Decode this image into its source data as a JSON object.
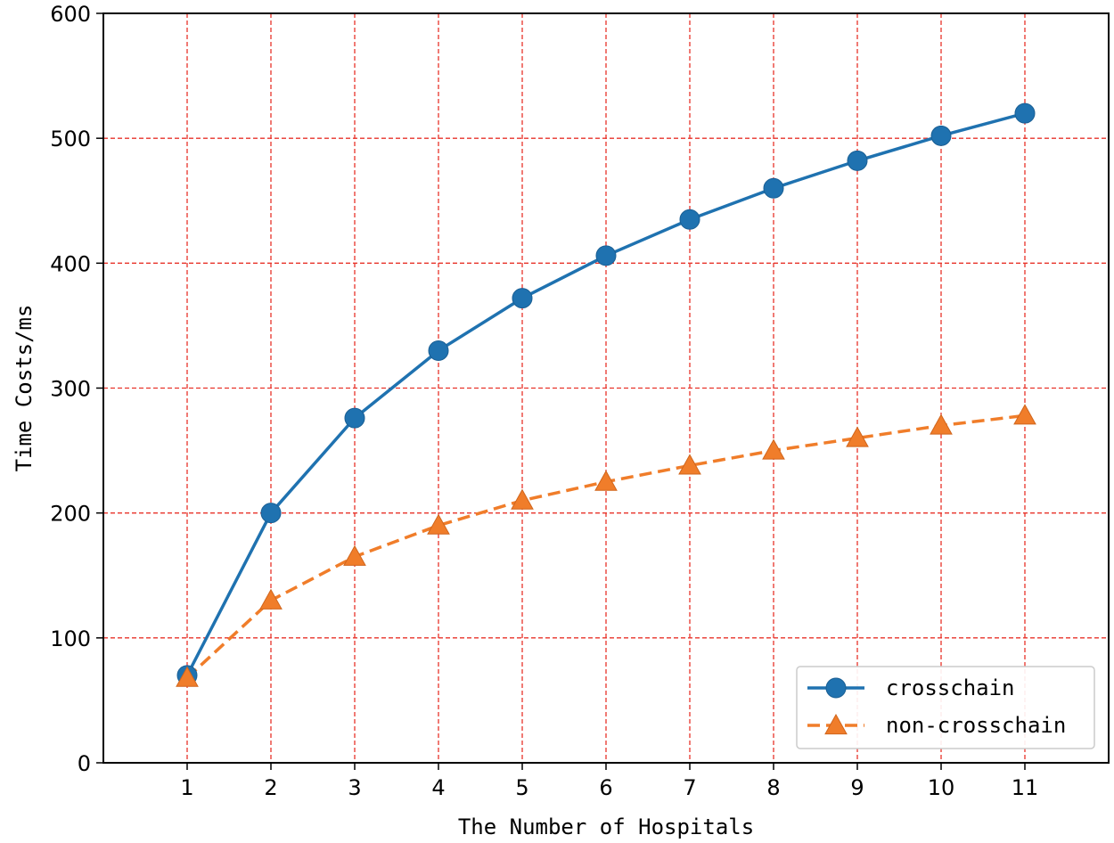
{
  "chart_data": {
    "type": "line",
    "xlabel": "The Number of Hospitals",
    "ylabel": "Time Costs/ms",
    "x": [
      1,
      2,
      3,
      4,
      5,
      6,
      7,
      8,
      9,
      10,
      11
    ],
    "xticks": [
      "1",
      "2",
      "3",
      "4",
      "5",
      "6",
      "7",
      "8",
      "9",
      "10",
      "11"
    ],
    "yticks": [
      "0",
      "100",
      "200",
      "300",
      "400",
      "500",
      "600"
    ],
    "xlim": [
      0,
      12
    ],
    "ylim": [
      0,
      600
    ],
    "grid": true,
    "grid_color": "#e8332a",
    "legend_position": "lower-right",
    "series": [
      {
        "name": "crosschain",
        "color": "#1f72b0",
        "marker": "circle",
        "line_style": "solid",
        "values": [
          70,
          200,
          276,
          330,
          372,
          406,
          435,
          460,
          482,
          502,
          520
        ]
      },
      {
        "name": "non-crosschain",
        "color": "#f07d2a",
        "marker": "triangle",
        "line_style": "dashed",
        "values": [
          68,
          130,
          165,
          190,
          210,
          225,
          238,
          250,
          260,
          270,
          278
        ]
      }
    ]
  }
}
